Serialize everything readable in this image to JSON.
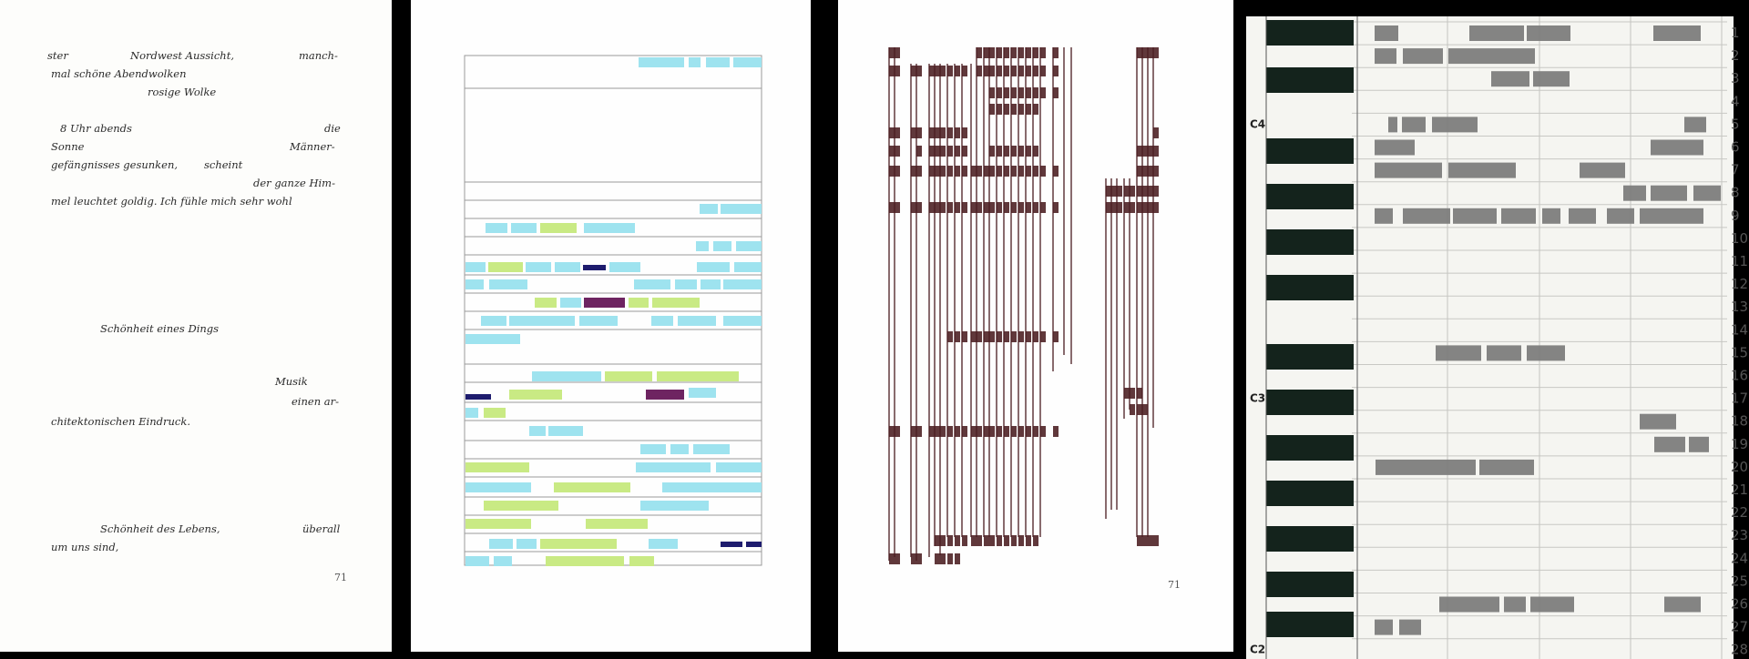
{
  "poem": {
    "line1": {
      "a": "ster",
      "b": "Nordwest Aussicht,",
      "c": "manch-"
    },
    "line2": {
      "a": "mal schöne Abendwolken"
    },
    "line3": {
      "a": "rosige Wolke"
    },
    "line4": {
      "a": "8 Uhr abends",
      "b": "die"
    },
    "line5": {
      "a": "Sonne",
      "b": "Männer-"
    },
    "line6": {
      "a": "gefängnisses gesunken,",
      "b": "scheint"
    },
    "line7": {
      "a": "der ganze Him-"
    },
    "line8": {
      "a": "mel leuchtet goldig. Ich fühle mich sehr wohl"
    },
    "line9": {
      "a": "Schönheit eines Dings"
    },
    "line10": {
      "a": "Musik"
    },
    "line11": {
      "a": "einen ar-"
    },
    "line12": {
      "a": "chitektonischen Eindruck."
    },
    "line13": {
      "a": "Schönheit des Lebens,",
      "b": "überall"
    },
    "line14": {
      "a": "um uns sind,"
    },
    "page": "71"
  },
  "score_page": "71",
  "piano_roll": {
    "numbers": [
      "1",
      "2",
      "3",
      "4",
      "5",
      "6",
      "7",
      "8",
      "9",
      "10",
      "11",
      "12",
      "13",
      "14",
      "15",
      "16",
      "17",
      "18",
      "19",
      "20",
      "21",
      "22",
      "23",
      "24",
      "25",
      "26",
      "27",
      "28"
    ],
    "note_labels": [
      "C4",
      "C3",
      "C2"
    ]
  },
  "colors": {
    "cyan": "#9ee3ef",
    "green": "#c9ea84",
    "navy": "#1e1c6e",
    "plum": "#6e2461",
    "gray_block": "#7a7a7a",
    "key_black": "#14231c",
    "ink": "#4a1c20"
  }
}
